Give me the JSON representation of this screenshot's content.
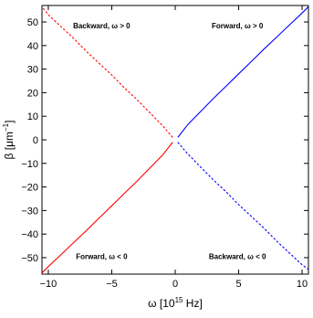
{
  "chart_data": {
    "type": "line",
    "xlabel": {
      "main": "ω [10",
      "sup": "15",
      "tail": " Hz]"
    },
    "ylabel": {
      "main": "β [μm",
      "sup": "−1",
      "tail": "]"
    },
    "xlim": [
      -10.5,
      10.5
    ],
    "ylim": [
      -57,
      57
    ],
    "xticks": [
      -10,
      -5,
      0,
      5,
      10
    ],
    "yticks": [
      50,
      40,
      30,
      20,
      10,
      0,
      -10,
      -20,
      -30,
      -40,
      -50
    ],
    "xtick_labels": [
      "−10",
      "−5",
      "0",
      "5",
      "10"
    ],
    "ytick_labels": [
      "50",
      "40",
      "30",
      "20",
      "10",
      "0",
      "−10",
      "−20",
      "−30",
      "−40",
      "−50"
    ],
    "grid": false,
    "series": [
      {
        "color": "#0000ff",
        "style": "solid",
        "x": [
          0.2,
          1.0,
          2.0,
          3.0,
          4.0,
          5.0,
          6.0,
          7.0,
          8.0,
          9.0,
          10.0,
          10.5
        ],
        "y": [
          1.0,
          6.5,
          12.0,
          17.5,
          22.7,
          28.0,
          33.2,
          38.5,
          43.6,
          48.7,
          53.8,
          56.5
        ]
      },
      {
        "color": "#0000ff",
        "style": "dashed",
        "x": [
          0.2,
          1.0,
          2.0,
          3.0,
          4.0,
          5.0,
          6.0,
          7.0,
          8.0,
          9.0,
          10.0,
          10.5
        ],
        "y": [
          -1.0,
          -6.0,
          -11.5,
          -17.0,
          -22.0,
          -27.5,
          -32.5,
          -37.5,
          -43.0,
          -48.0,
          -53.0,
          -55.0
        ]
      },
      {
        "color": "#ff0000",
        "style": "solid",
        "x": [
          -0.2,
          -1.0,
          -2.0,
          -3.0,
          -4.0,
          -5.0,
          -6.0,
          -7.0,
          -8.0,
          -9.0,
          -10.0,
          -10.5
        ],
        "y": [
          -1.0,
          -6.5,
          -12.0,
          -17.5,
          -22.7,
          -28.0,
          -33.2,
          -38.5,
          -43.6,
          -48.7,
          -53.8,
          -56.5
        ]
      },
      {
        "color": "#ff0000",
        "style": "dashed",
        "x": [
          -0.2,
          -1.0,
          -2.0,
          -3.0,
          -4.0,
          -5.0,
          -6.0,
          -7.0,
          -8.0,
          -9.0,
          -10.0,
          -10.5
        ],
        "y": [
          1.0,
          6.0,
          11.5,
          17.0,
          22.0,
          27.5,
          32.5,
          37.5,
          43.0,
          48.0,
          53.0,
          56.5
        ]
      }
    ],
    "annotations": [
      {
        "text": "Backward, ω > 0",
        "x": -5.8,
        "y": 48.5
      },
      {
        "text": "Forward, ω > 0",
        "x": 4.9,
        "y": 48.5
      },
      {
        "text": "Forward, ω < 0",
        "x": -5.8,
        "y": -49.5
      },
      {
        "text": "Backward, ω < 0",
        "x": 4.9,
        "y": -49.5
      }
    ]
  }
}
